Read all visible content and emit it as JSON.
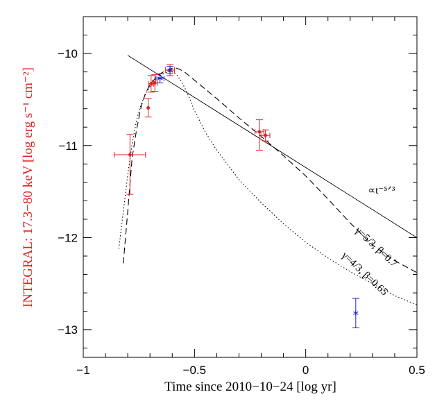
{
  "chart_data": {
    "type": "scatter",
    "title": "",
    "xlabel": "Time since 2010−10−24 [log yr]",
    "ylabel": "INTEGRAL: 17.3−80 keV [log erg s⁻¹ cm⁻²]",
    "xlim": [
      -1,
      0.5
    ],
    "ylim": [
      -13.3,
      -9.6
    ],
    "xticks": [
      -1,
      -0.5,
      0,
      0.5
    ],
    "xtick_labels": [
      "−1",
      "−0.5",
      "0",
      "0.5"
    ],
    "yticks": [
      -10,
      -11,
      -12,
      -13
    ],
    "ytick_labels": [
      "−10",
      "−11",
      "−12",
      "−13"
    ],
    "grid": false,
    "colors": {
      "red": "#dd2222",
      "blue": "#2222cc",
      "ylabel": "#dd2222",
      "axes": "#000000"
    },
    "series": [
      {
        "name": "INTEGRAL red points",
        "color": "#dd2222",
        "marker": "diamond",
        "points": [
          {
            "x": -0.79,
            "y": -11.1,
            "xerr": 0.07,
            "yerr_low": 0.43,
            "yerr_high": 0.22
          },
          {
            "x": -0.708,
            "y": -10.59,
            "xerr": 0.0,
            "yerr_low": 0.1,
            "yerr_high": 0.1
          },
          {
            "x": -0.695,
            "y": -10.33,
            "xerr": 0.012,
            "yerr_low": 0.09,
            "yerr_high": 0.09
          },
          {
            "x": -0.678,
            "y": -10.32,
            "xerr": 0.012,
            "yerr_low": 0.09,
            "yerr_high": 0.09
          },
          {
            "x": -0.61,
            "y": -10.18,
            "xerr": 0.02,
            "yerr_low": 0.06,
            "yerr_high": 0.06
          },
          {
            "x": -0.208,
            "y": -10.85,
            "xerr": 0.02,
            "yerr_low": 0.2,
            "yerr_high": 0.13
          },
          {
            "x": -0.181,
            "y": -10.89,
            "xerr": 0.02,
            "yerr_low": 0.06,
            "yerr_high": 0.06
          }
        ]
      },
      {
        "name": "blue points",
        "color": "#2222cc",
        "marker": "asterisk",
        "points": [
          {
            "x": -0.655,
            "y": -10.27,
            "xerr": 0.018,
            "yerr_low": 0.05,
            "yerr_high": 0.05
          },
          {
            "x": -0.61,
            "y": -10.18,
            "xerr": 0.0,
            "yerr_low": 0.04,
            "yerr_high": 0.04
          },
          {
            "x": 0.225,
            "y": -12.82,
            "xerr": 0.0,
            "yerr_low": 0.16,
            "yerr_high": 0.16
          }
        ]
      }
    ],
    "curves": [
      {
        "name": "power law t^-5/3",
        "style": "solid",
        "points": [
          [
            -0.8,
            -10.02
          ],
          [
            0.5,
            -12.0
          ]
        ]
      },
      {
        "name": "gamma=5/3, beta=0.7",
        "style": "dashed",
        "points": [
          [
            -0.82,
            -12.28
          ],
          [
            -0.81,
            -12.0
          ],
          [
            -0.8,
            -11.72
          ],
          [
            -0.79,
            -11.42
          ],
          [
            -0.78,
            -11.13
          ],
          [
            -0.76,
            -10.82
          ],
          [
            -0.74,
            -10.58
          ],
          [
            -0.72,
            -10.43
          ],
          [
            -0.7,
            -10.34
          ],
          [
            -0.68,
            -10.28
          ],
          [
            -0.66,
            -10.23
          ],
          [
            -0.64,
            -10.2
          ],
          [
            -0.62,
            -10.18
          ],
          [
            -0.6,
            -10.16
          ],
          [
            -0.58,
            -10.16
          ],
          [
            -0.56,
            -10.18
          ],
          [
            -0.54,
            -10.21
          ],
          [
            -0.52,
            -10.25
          ],
          [
            -0.5,
            -10.29
          ],
          [
            -0.45,
            -10.39
          ],
          [
            -0.4,
            -10.49
          ],
          [
            -0.3,
            -10.7
          ],
          [
            -0.2,
            -10.9
          ],
          [
            -0.1,
            -11.11
          ],
          [
            0.0,
            -11.33
          ],
          [
            0.1,
            -11.58
          ],
          [
            0.2,
            -11.84
          ],
          [
            0.3,
            -12.08
          ],
          [
            0.4,
            -12.25
          ],
          [
            0.5,
            -12.38
          ]
        ]
      },
      {
        "name": "gamma=4/3, beta=0.65",
        "style": "dotted",
        "points": [
          [
            -0.84,
            -12.12
          ],
          [
            -0.82,
            -11.72
          ],
          [
            -0.8,
            -11.32
          ],
          [
            -0.78,
            -10.98
          ],
          [
            -0.76,
            -10.72
          ],
          [
            -0.74,
            -10.55
          ],
          [
            -0.72,
            -10.44
          ],
          [
            -0.7,
            -10.36
          ],
          [
            -0.68,
            -10.3
          ],
          [
            -0.66,
            -10.25
          ],
          [
            -0.64,
            -10.22
          ],
          [
            -0.62,
            -10.2
          ],
          [
            -0.6,
            -10.2
          ],
          [
            -0.58,
            -10.23
          ],
          [
            -0.56,
            -10.3
          ],
          [
            -0.54,
            -10.39
          ],
          [
            -0.52,
            -10.5
          ],
          [
            -0.5,
            -10.62
          ],
          [
            -0.45,
            -10.86
          ],
          [
            -0.4,
            -11.05
          ],
          [
            -0.3,
            -11.37
          ],
          [
            -0.2,
            -11.62
          ],
          [
            -0.1,
            -11.85
          ],
          [
            0.0,
            -12.05
          ],
          [
            0.1,
            -12.22
          ],
          [
            0.2,
            -12.37
          ],
          [
            0.3,
            -12.5
          ],
          [
            0.4,
            -12.63
          ],
          [
            0.5,
            -12.73
          ]
        ]
      }
    ],
    "annotations": [
      {
        "name": "powerlaw-label",
        "text": "∝t⁻⁵ᐟ³",
        "x": 0.28,
        "y": -11.52,
        "rotate": 0
      },
      {
        "name": "gamma53-label",
        "text": "γ=5/3, β=0.7",
        "x": 0.22,
        "y": -11.93,
        "rotate": 43
      },
      {
        "name": "gamma43-label",
        "text": "γ=4/3, β=0.65",
        "x": 0.16,
        "y": -12.2,
        "rotate": 43
      }
    ]
  }
}
